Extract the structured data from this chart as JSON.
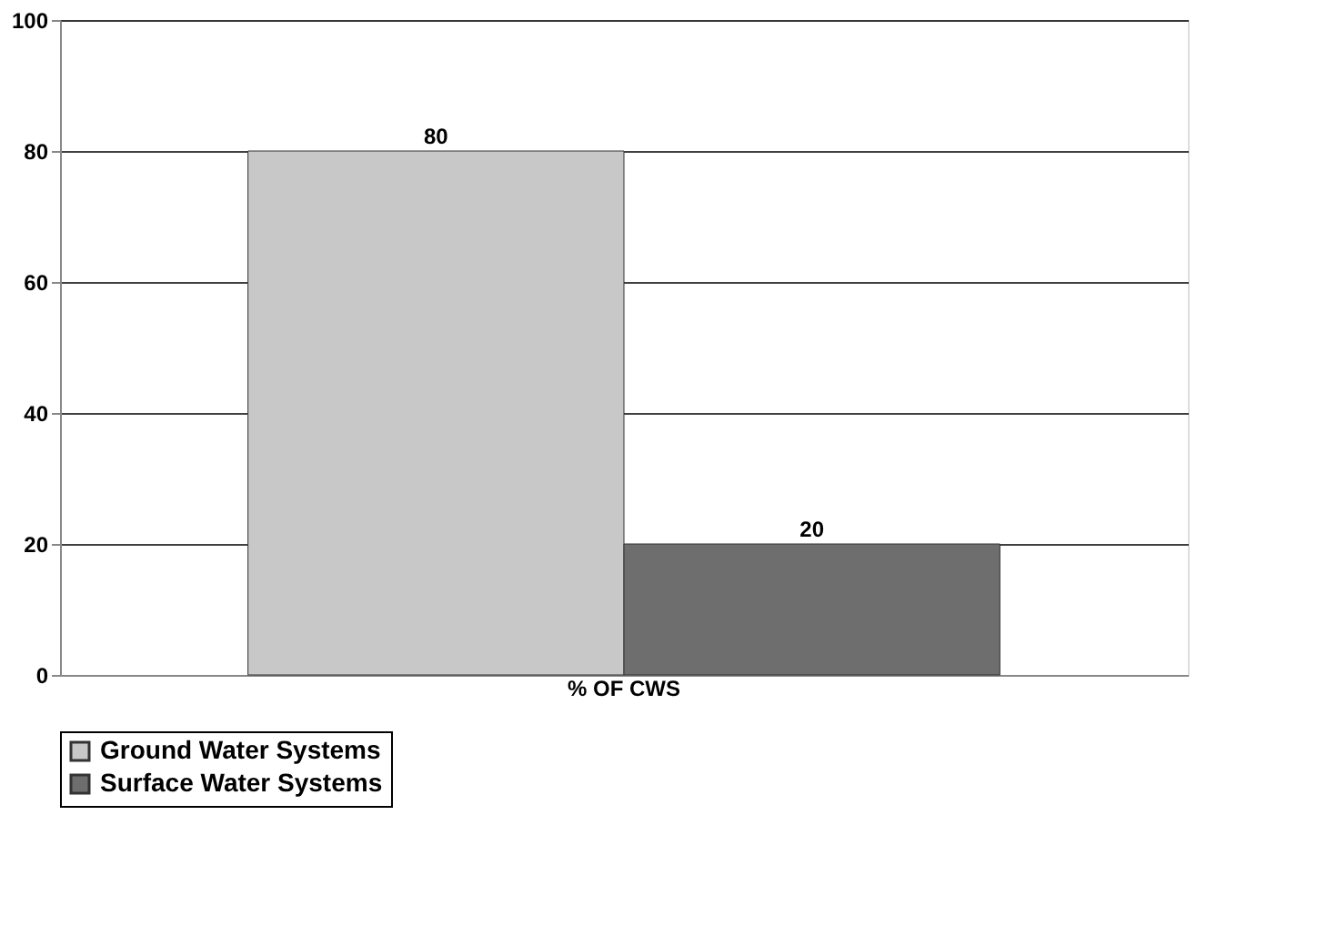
{
  "chart_data": {
    "type": "bar",
    "categories": [
      "% OF CWS"
    ],
    "series": [
      {
        "name": "Ground Water Systems",
        "color": "#c8c8c8",
        "values": [
          80
        ]
      },
      {
        "name": "Surface Water Systems",
        "color": "#6e6e6e",
        "values": [
          20
        ]
      }
    ],
    "ylim": [
      0,
      100
    ],
    "yticks": [
      0,
      20,
      40,
      60,
      80,
      100
    ],
    "grid": "y",
    "legend": "bottom",
    "data_labels": true
  }
}
